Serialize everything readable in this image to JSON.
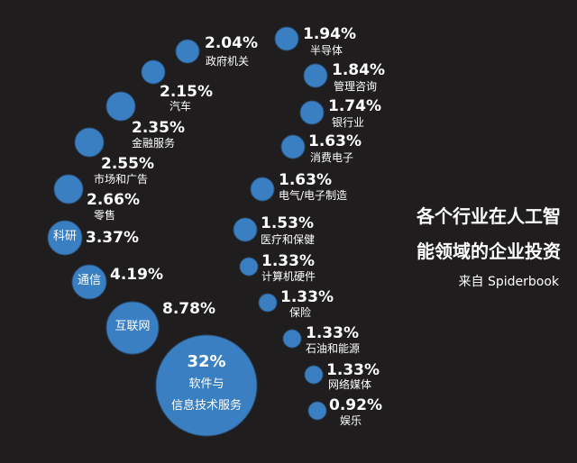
{
  "title_line1": "各个行业在人工智",
  "title_line2": "能领域的企业投资",
  "source": "来自 Spiderbook",
  "chart_data": {
    "type": "bubble",
    "color": "#3a7fc1",
    "unit": "%",
    "items": [
      {
        "label": "软件与",
        "label2": "信息技术服务",
        "value": 32,
        "text": "32%"
      },
      {
        "label": "互联网",
        "value": 8.78,
        "text": "8.78%"
      },
      {
        "label": "通信",
        "value": 4.19,
        "text": "4.19%"
      },
      {
        "label": "科研",
        "value": 3.37,
        "text": "3.37%"
      },
      {
        "label": "零售",
        "value": 2.66,
        "text": "2.66%"
      },
      {
        "label": "市场和广告",
        "value": 2.55,
        "text": "2.55%"
      },
      {
        "label": "金融服务",
        "value": 2.35,
        "text": "2.35%"
      },
      {
        "label": "汽车",
        "value": 2.15,
        "text": "2.15%"
      },
      {
        "label": "政府机关",
        "value": 2.04,
        "text": "2.04%"
      },
      {
        "label": "半导体",
        "value": 1.94,
        "text": "1.94%"
      },
      {
        "label": "管理咨询",
        "value": 1.84,
        "text": "1.84%"
      },
      {
        "label": "银行业",
        "value": 1.74,
        "text": "1.74%"
      },
      {
        "label": "消费电子",
        "value": 1.63,
        "text": "1.63%"
      },
      {
        "label": "电气/电子制造",
        "value": 1.63,
        "text": "1.63%"
      },
      {
        "label": "医疗和保健",
        "value": 1.53,
        "text": "1.53%"
      },
      {
        "label": "计算机硬件",
        "value": 1.33,
        "text": "1.33%"
      },
      {
        "label": "保险",
        "value": 1.33,
        "text": "1.33%"
      },
      {
        "label": "石油和能源",
        "value": 1.33,
        "text": "1.33%"
      },
      {
        "label": "网络媒体",
        "value": 1.33,
        "text": "1.33%"
      },
      {
        "label": "娱乐",
        "value": 0.92,
        "text": "0.92%"
      }
    ]
  }
}
